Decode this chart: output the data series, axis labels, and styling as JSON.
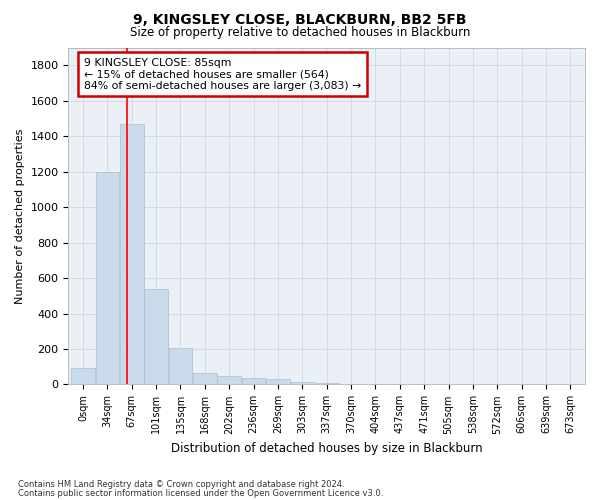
{
  "title1": "9, KINGSLEY CLOSE, BLACKBURN, BB2 5FB",
  "title2": "Size of property relative to detached houses in Blackburn",
  "xlabel": "Distribution of detached houses by size in Blackburn",
  "ylabel": "Number of detached properties",
  "bar_values": [
    90,
    1200,
    1470,
    540,
    205,
    65,
    48,
    37,
    28,
    12,
    7,
    0,
    0,
    0,
    0,
    0,
    0,
    0,
    0,
    0,
    0
  ],
  "bar_labels": [
    "0sqm",
    "34sqm",
    "67sqm",
    "101sqm",
    "135sqm",
    "168sqm",
    "202sqm",
    "236sqm",
    "269sqm",
    "303sqm",
    "337sqm",
    "370sqm",
    "404sqm",
    "437sqm",
    "471sqm",
    "505sqm",
    "538sqm",
    "572sqm",
    "606sqm",
    "639sqm",
    "673sqm"
  ],
  "bar_color": "#c9daea",
  "bar_edge_color": "#aabfcf",
  "grid_color": "#d0d8e0",
  "bg_color": "#eaf0f6",
  "red_line_x": 1.82,
  "annotation_text": "9 KINGSLEY CLOSE: 85sqm\n← 15% of detached houses are smaller (564)\n84% of semi-detached houses are larger (3,083) →",
  "annotation_box_color": "#ffffff",
  "annotation_box_edge": "#cc0000",
  "ylim": [
    0,
    1900
  ],
  "yticks": [
    0,
    200,
    400,
    600,
    800,
    1000,
    1200,
    1400,
    1600,
    1800
  ],
  "footer1": "Contains HM Land Registry data © Crown copyright and database right 2024.",
  "footer2": "Contains public sector information licensed under the Open Government Licence v3.0."
}
